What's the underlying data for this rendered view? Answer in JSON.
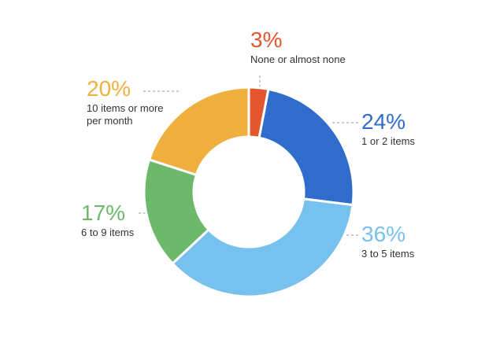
{
  "chart_data": {
    "type": "donut",
    "categories": [
      "None or almost none",
      "1 or 2 items",
      "3 to 5 items",
      "6 to 9 items",
      "10 items or more per month"
    ],
    "values": [
      3,
      24,
      36,
      17,
      20
    ],
    "value_labels": [
      "3%",
      "24%",
      "36%",
      "17%",
      "20%"
    ],
    "colors": [
      "#e4572e",
      "#2f6ccb",
      "#76c1ee",
      "#6db86b",
      "#f0b040"
    ]
  }
}
